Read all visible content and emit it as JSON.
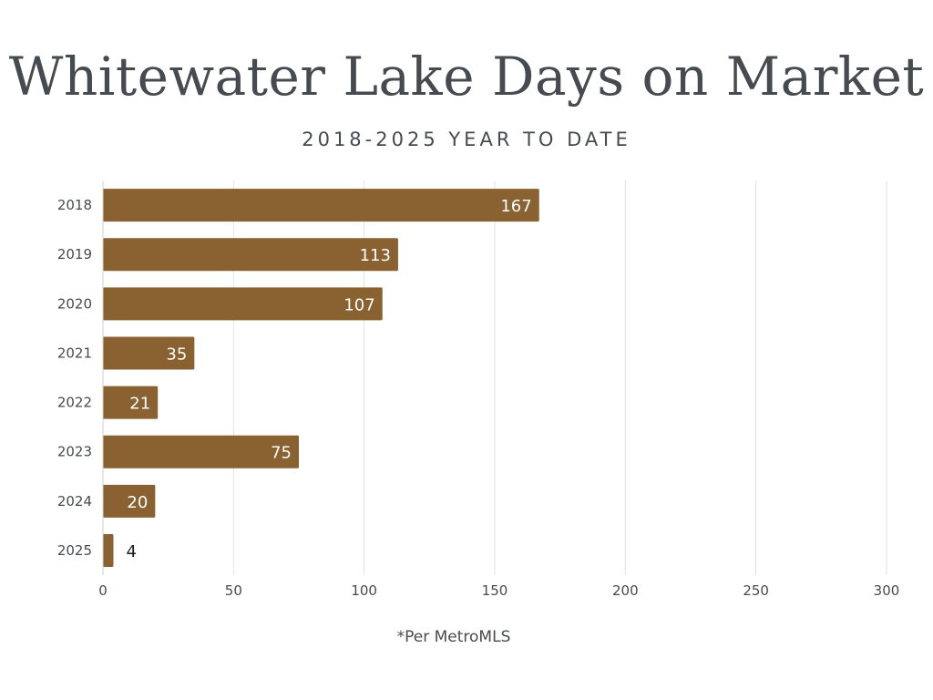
{
  "chart_data": {
    "type": "bar",
    "orientation": "horizontal",
    "title": "Whitewater Lake Days on Market",
    "subtitle": "2018-2025 YEAR TO DATE",
    "categories": [
      "2018",
      "2019",
      "2020",
      "2021",
      "2022",
      "2023",
      "2024",
      "2025"
    ],
    "values": [
      167,
      113,
      107,
      35,
      21,
      75,
      20,
      4
    ],
    "value_labels": [
      "167",
      "113",
      "107",
      "35",
      "21",
      "75",
      "20",
      "4"
    ],
    "xlim": [
      0,
      300
    ],
    "x_ticks": [
      0,
      50,
      100,
      150,
      200,
      250,
      300
    ],
    "x_tick_labels": [
      "0",
      "50",
      "100",
      "150",
      "200",
      "250",
      "300"
    ],
    "grid": true,
    "bar_color": "#8a6130",
    "footnote": "*Per MetroMLS"
  },
  "colors": {
    "bar": "#8a6130",
    "text": "#454b50",
    "grid": "#e2e2e2",
    "label_inside": "#ffffff",
    "label_outside": "#1a1a1a"
  }
}
